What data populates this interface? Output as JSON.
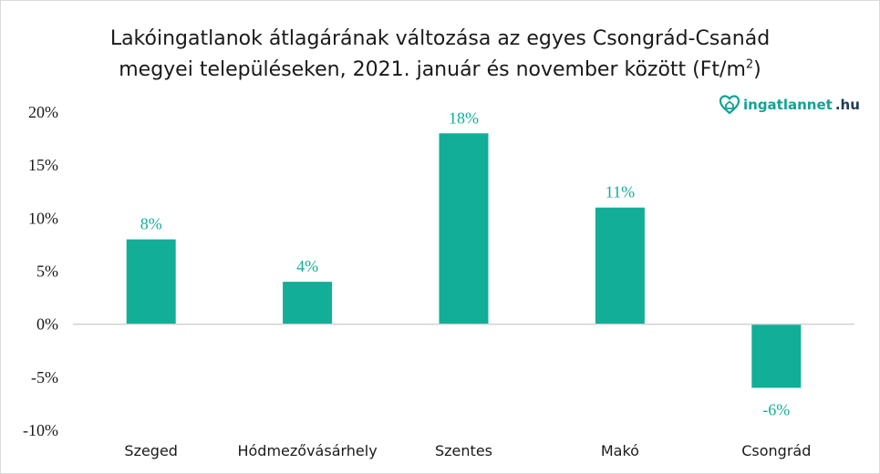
{
  "title_line1": "Lakóingatlanok átlagárának változása az egyes Csongrád-Csanád",
  "title_line2_main": "megyei településeken, 2021. január és november között (Ft/m",
  "title_line2_sup": "2",
  "title_line2_end": ")",
  "brand": {
    "part1": "ingatlannet",
    "part2": ".hu",
    "icon": "house-heart-icon"
  },
  "colors": {
    "bar": "#12ae98",
    "label": "#12ae98",
    "axis": "#d0d0d0",
    "brand_teal": "#12a396",
    "brand_navy": "#1f3b57"
  },
  "chart_data": {
    "type": "bar",
    "title": "Lakóingatlanok átlagárának változása az egyes Csongrád-Csanád megyei településeken, 2021. január és november között (Ft/m2)",
    "xlabel": "",
    "ylabel": "",
    "categories": [
      "Szeged",
      "Hódmezővásárhely",
      "Szentes",
      "Makó",
      "Csongrád"
    ],
    "values": [
      8,
      4,
      18,
      11,
      -6
    ],
    "value_labels": [
      "8%",
      "4%",
      "18%",
      "11%",
      "-6%"
    ],
    "ylim": [
      -10,
      20
    ],
    "yticks": [
      20,
      15,
      10,
      5,
      0,
      -5,
      -10
    ],
    "ytick_labels": [
      "20%",
      "15%",
      "10%",
      "5%",
      "0%",
      "-5%",
      "-10%"
    ],
    "grid": false,
    "legend": "none"
  }
}
